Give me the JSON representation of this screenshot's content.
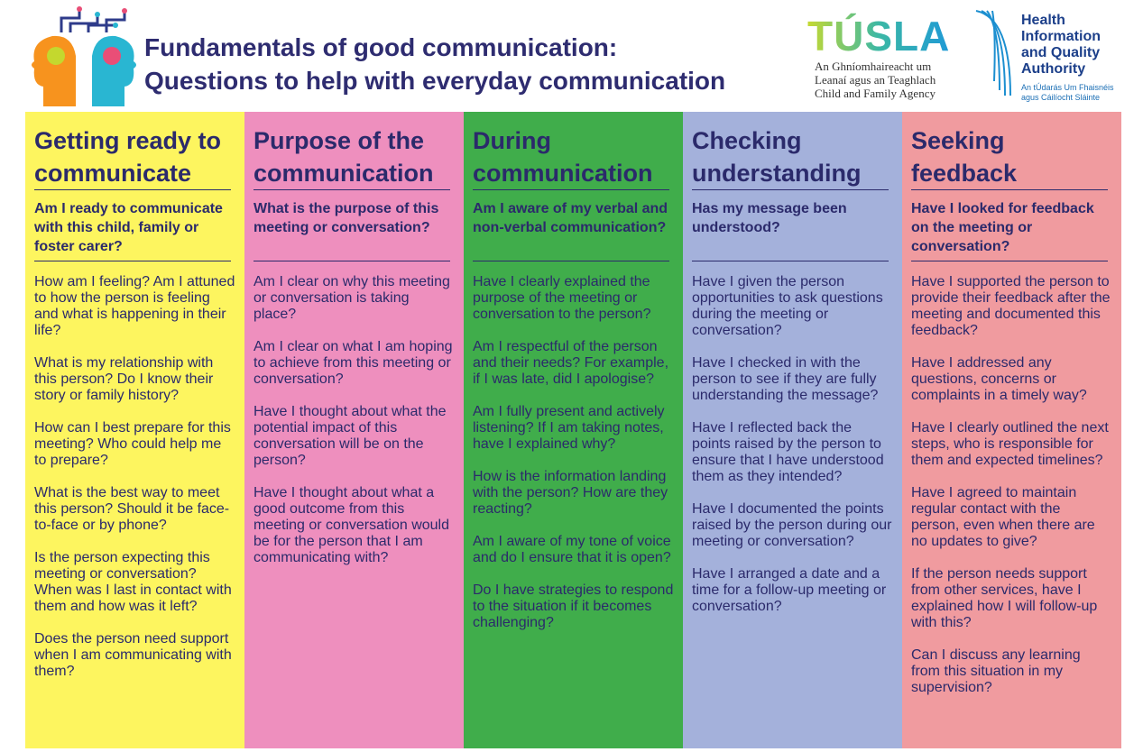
{
  "header": {
    "title_lines": [
      "Fundamentals of good communication:",
      "Questions to help with everyday communication"
    ]
  },
  "logos": {
    "tusla": {
      "name": "TÚSLA",
      "lines": [
        "An Ghníomhaireacht um",
        "Leanaí agus an Teaghlach",
        "Child and Family Agency"
      ]
    },
    "hiqa": {
      "lines": [
        "Health",
        "Information",
        "and Quality",
        "Authority"
      ],
      "irish_lines": [
        "An tÚdarás Um Fhaisnéis",
        "agus Cáilíocht Sláinte"
      ]
    }
  },
  "columns": [
    {
      "title": "Getting ready to communicate",
      "question": "Am I ready to communicate with this child, family or foster carer?",
      "items": [
        "How am I feeling? Am I attuned to how the person is feeling and what is happening in their life?",
        "What is my relationship with this person? Do I know their story or family history?",
        "How can I best prepare for this meeting? Who could help me to prepare?",
        "What is the best way to meet this person? Should it be face-to-face or by phone?",
        "Is the person expecting this meeting or conversation? When was I last in contact with them and how was it left?",
        "Does the person need support when I am communicating with them?"
      ]
    },
    {
      "title": "Purpose of the communication",
      "question": "What is the purpose of this meeting or conversation?",
      "items": [
        "Am I clear on why this meeting or conversation is taking place?",
        "Am I clear on what I am hoping to achieve from this meeting or conversation?",
        "Have I thought about what the potential impact of this conversation will be on the person?",
        "Have I thought about what a good outcome from this meeting or conversation would be for the person that I am communicating with?"
      ]
    },
    {
      "title": "During communication",
      "question": "Am I aware of my verbal and non-verbal communication?",
      "items": [
        "Have I clearly explained the purpose of the meeting or conversation to the person?",
        "Am I respectful of the person and their needs? For example, if I was late, did I apologise?",
        "Am I fully present and actively listening? If I am taking notes, have I explained why?",
        "How is the information landing with the person? How are they reacting?",
        "Am I aware of my tone of voice and do I ensure that it is open?",
        "Do I have strategies to respond to the situation if it becomes challenging?"
      ]
    },
    {
      "title": "Checking understanding",
      "question": "Has my message been understood?",
      "items": [
        "Have I given the person opportunities to ask questions during the meeting or conversation?",
        "Have I checked in with the person to see if they are fully understanding the message?",
        "Have I reflected back the points raised by the person to ensure that I have understood them as they intended?",
        "Have I documented the points raised by the person during our meeting or conversation?",
        "Have I arranged a date and a time for a follow-up meeting or conversation?"
      ]
    },
    {
      "title": "Seeking feedback",
      "question": "Have I looked for feedback on the meeting or conversation?",
      "items": [
        "Have I supported the person to provide their feedback after the meeting and documented this feedback?",
        "Have I addressed any questions, concerns or complaints in a timely way?",
        "Have I clearly outlined the next steps, who is responsible for them and expected timelines?",
        "Have I agreed to maintain regular contact with the person, even when there are no updates to give?",
        "If the person needs support from other services, have I explained how I will follow-up with this?",
        "Can I discuss any learning from this situation in my supervision?"
      ]
    }
  ]
}
